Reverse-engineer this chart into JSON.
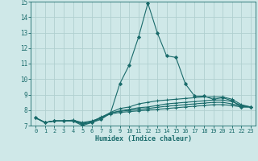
{
  "xlabel": "Humidex (Indice chaleur)",
  "xlim": [
    -0.5,
    23.5
  ],
  "ylim": [
    7,
    15
  ],
  "yticks": [
    7,
    8,
    9,
    10,
    11,
    12,
    13,
    14,
    15
  ],
  "xticks": [
    0,
    1,
    2,
    3,
    4,
    5,
    6,
    7,
    8,
    9,
    10,
    11,
    12,
    13,
    14,
    15,
    16,
    17,
    18,
    19,
    20,
    21,
    22,
    23
  ],
  "bg_color": "#cfe8e8",
  "grid_color": "#b0d0d0",
  "line_color": "#1a6b6b",
  "series": [
    [
      7.5,
      7.2,
      7.3,
      7.3,
      7.3,
      7.0,
      7.2,
      7.4,
      7.8,
      9.7,
      10.9,
      12.7,
      14.9,
      13.0,
      11.5,
      11.4,
      9.7,
      8.9,
      8.9,
      8.7,
      8.8,
      8.6,
      8.2,
      8.2
    ],
    [
      7.5,
      7.2,
      7.3,
      7.3,
      7.3,
      7.1,
      7.2,
      7.5,
      7.85,
      8.1,
      8.2,
      8.4,
      8.5,
      8.6,
      8.65,
      8.7,
      8.75,
      8.8,
      8.85,
      8.85,
      8.85,
      8.7,
      8.35,
      8.2
    ],
    [
      7.5,
      7.2,
      7.3,
      7.3,
      7.3,
      7.1,
      7.2,
      7.5,
      7.8,
      7.95,
      8.05,
      8.15,
      8.2,
      8.3,
      8.4,
      8.45,
      8.5,
      8.55,
      8.6,
      8.65,
      8.65,
      8.55,
      8.3,
      8.2
    ],
    [
      7.5,
      7.2,
      7.3,
      7.3,
      7.35,
      7.15,
      7.25,
      7.55,
      7.82,
      7.92,
      7.98,
      8.05,
      8.1,
      8.18,
      8.25,
      8.3,
      8.35,
      8.4,
      8.45,
      8.5,
      8.5,
      8.4,
      8.25,
      8.2
    ],
    [
      7.5,
      7.2,
      7.3,
      7.3,
      7.35,
      7.2,
      7.3,
      7.5,
      7.75,
      7.85,
      7.9,
      7.95,
      8.0,
      8.05,
      8.1,
      8.15,
      8.2,
      8.25,
      8.3,
      8.35,
      8.35,
      8.3,
      8.2,
      8.2
    ]
  ]
}
